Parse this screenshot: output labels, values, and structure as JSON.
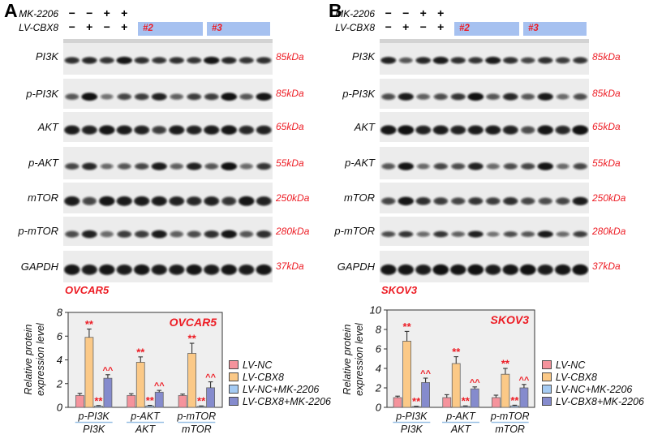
{
  "colors": {
    "accent_red": "#ED1C24",
    "clone_box_bg": "#A6C1F0",
    "fraction_underline": "#9DC3E6",
    "plot_bg": "#EFEFEF",
    "strip_bg": "#ECECEC",
    "band_dark": "#111111"
  },
  "panels": [
    {
      "letter": "A",
      "treatment_rows": [
        {
          "label": "MK-2206",
          "symbols": [
            "−",
            "−",
            "+",
            "+"
          ]
        },
        {
          "label": "LV-CBX8",
          "symbols": [
            "−",
            "+",
            "−",
            "+"
          ]
        }
      ],
      "clone_boxes": [
        "#2",
        "#3"
      ],
      "blots": [
        {
          "label": "PI3K",
          "kda": "85kDa",
          "weight": 0.95,
          "bands": [
            0.7,
            0.75,
            0.65,
            0.9,
            0.7,
            0.65,
            0.7,
            0.65,
            0.9,
            0.75,
            0.65,
            0.7
          ]
        },
        {
          "label": "p-PI3K",
          "kda": "85kDa",
          "weight": 1.0,
          "bands": [
            0.45,
            0.95,
            0.25,
            0.55,
            0.6,
            0.8,
            0.4,
            0.6,
            0.6,
            0.95,
            0.45,
            0.9
          ]
        },
        {
          "label": "AKT",
          "kda": "65kDa",
          "weight": 1.2,
          "bands": [
            0.85,
            0.8,
            0.9,
            0.85,
            0.8,
            0.6,
            0.85,
            0.8,
            0.85,
            0.9,
            0.75,
            0.8
          ]
        },
        {
          "label": "p-AKT",
          "kda": "55kDa",
          "weight": 1.0,
          "bands": [
            0.55,
            0.75,
            0.3,
            0.45,
            0.55,
            0.85,
            0.4,
            0.8,
            0.45,
            0.95,
            0.35,
            0.65
          ]
        },
        {
          "label": "mTOR",
          "kda": "250kDa",
          "weight": 1.25,
          "bands": [
            0.85,
            0.55,
            0.9,
            0.85,
            0.85,
            0.85,
            0.8,
            0.75,
            0.8,
            0.65,
            0.9,
            0.8
          ]
        },
        {
          "label": "p-mTOR",
          "kda": "280kDa",
          "weight": 1.05,
          "bands": [
            0.5,
            0.8,
            0.35,
            0.6,
            0.6,
            0.85,
            0.4,
            0.5,
            0.7,
            0.9,
            0.45,
            0.7
          ]
        },
        {
          "label": "GAPDH",
          "kda": "37kDa",
          "weight": 1.35,
          "bands": [
            0.9,
            0.85,
            0.9,
            0.85,
            0.9,
            0.85,
            0.85,
            0.9,
            0.85,
            0.9,
            0.85,
            0.9
          ]
        }
      ],
      "cell_line": "OVCAR5",
      "chart": {
        "type": "bar",
        "title": "OVCAR5",
        "ylabel_lines": [
          "Relative protein",
          "expression level"
        ],
        "ylim": [
          0,
          8
        ],
        "yticks": [
          0,
          2,
          4,
          6,
          8
        ],
        "categories": [
          [
            "p-PI3K",
            "PI3K"
          ],
          [
            "p-AKT",
            "AKT"
          ],
          [
            "p-mTOR",
            "mTOR"
          ]
        ],
        "series": [
          {
            "name": "LV-NC",
            "color": "#F5939C",
            "values": [
              1.0,
              1.0,
              1.0
            ],
            "errors": [
              0.18,
              0.15,
              0.12
            ],
            "sig": null
          },
          {
            "name": "LV-CBX8",
            "color": "#FBC987",
            "values": [
              5.9,
              3.8,
              4.55
            ],
            "errors": [
              0.7,
              0.45,
              0.85
            ],
            "sig": "**"
          },
          {
            "name": "LV-NC+MK-2206",
            "color": "#A5CBF3",
            "values": [
              0.1,
              0.12,
              0.08
            ],
            "errors": [
              0.05,
              0.05,
              0.04
            ],
            "sig": "**"
          },
          {
            "name": "LV-CBX8+MK-2206",
            "color": "#858BCD",
            "values": [
              2.45,
              1.28,
              1.65
            ],
            "errors": [
              0.3,
              0.15,
              0.5
            ],
            "sig": "^^"
          }
        ]
      }
    },
    {
      "letter": "B",
      "treatment_rows": [
        {
          "label": "MK-2206",
          "symbols": [
            "−",
            "−",
            "+",
            "+"
          ]
        },
        {
          "label": "LV-CBX8",
          "symbols": [
            "−",
            "+",
            "−",
            "+"
          ]
        }
      ],
      "clone_boxes": [
        "#2",
        "#3"
      ],
      "blots": [
        {
          "label": "PI3K",
          "kda": "85kDa",
          "weight": 0.95,
          "bands": [
            0.8,
            0.45,
            0.75,
            0.85,
            0.7,
            0.65,
            0.85,
            0.7,
            0.55,
            0.7,
            0.6,
            0.65
          ]
        },
        {
          "label": "p-PI3K",
          "kda": "85kDa",
          "weight": 1.0,
          "bands": [
            0.5,
            0.85,
            0.4,
            0.5,
            0.65,
            0.95,
            0.45,
            0.75,
            0.45,
            0.85,
            0.3,
            0.5
          ]
        },
        {
          "label": "AKT",
          "kda": "65kDa",
          "weight": 1.2,
          "bands": [
            0.9,
            0.95,
            0.8,
            0.85,
            0.8,
            0.85,
            0.85,
            0.8,
            0.5,
            0.9,
            0.75,
            0.95
          ]
        },
        {
          "label": "p-AKT",
          "kda": "55kDa",
          "weight": 1.0,
          "bands": [
            0.45,
            0.9,
            0.3,
            0.55,
            0.5,
            0.8,
            0.35,
            0.5,
            0.55,
            0.9,
            0.3,
            0.55
          ]
        },
        {
          "label": "mTOR",
          "kda": "250kDa",
          "weight": 1.1,
          "bands": [
            0.55,
            0.9,
            0.7,
            0.6,
            0.55,
            0.65,
            0.6,
            0.7,
            0.55,
            0.5,
            0.55,
            0.85
          ]
        },
        {
          "label": "p-mTOR",
          "kda": "280kDa",
          "weight": 0.9,
          "bands": [
            0.5,
            0.65,
            0.35,
            0.65,
            0.4,
            0.8,
            0.25,
            0.5,
            0.45,
            0.85,
            0.35,
            0.6
          ]
        },
        {
          "label": "GAPDH",
          "kda": "37kDa",
          "weight": 1.35,
          "bands": [
            0.9,
            0.9,
            0.85,
            0.95,
            0.9,
            0.95,
            0.85,
            0.9,
            0.95,
            0.85,
            0.9,
            0.95
          ]
        }
      ],
      "cell_line": "SKOV3",
      "chart": {
        "type": "bar",
        "title": "SKOV3",
        "ylabel_lines": [
          "Relative protein",
          "expression level"
        ],
        "ylim": [
          0,
          10
        ],
        "yticks": [
          0,
          2,
          4,
          6,
          8,
          10
        ],
        "categories": [
          [
            "p-PI3K",
            "PI3K"
          ],
          [
            "p-AKT",
            "AKT"
          ],
          [
            "p-mTOR",
            "mTOR"
          ]
        ],
        "series": [
          {
            "name": "LV-NC",
            "color": "#F5939C",
            "values": [
              1.0,
              1.0,
              1.0
            ],
            "errors": [
              0.15,
              0.3,
              0.25
            ],
            "sig": null
          },
          {
            "name": "LV-CBX8",
            "color": "#FBC987",
            "values": [
              6.8,
              4.5,
              3.4
            ],
            "errors": [
              1.0,
              0.7,
              0.6
            ],
            "sig": "**"
          },
          {
            "name": "LV-NC+MK-2206",
            "color": "#A5CBF3",
            "values": [
              0.08,
              0.1,
              0.15
            ],
            "errors": [
              0.04,
              0.05,
              0.07
            ],
            "sig": "**"
          },
          {
            "name": "LV-CBX8+MK-2206",
            "color": "#858BCD",
            "values": [
              2.55,
              1.9,
              2.0
            ],
            "errors": [
              0.45,
              0.2,
              0.35
            ],
            "sig": "^^"
          }
        ]
      }
    }
  ]
}
